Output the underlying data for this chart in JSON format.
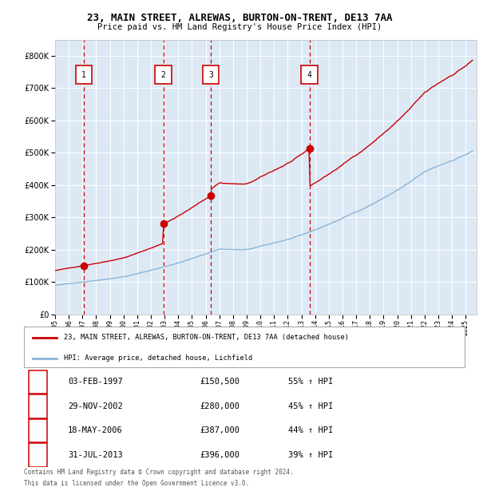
{
  "title": "23, MAIN STREET, ALREWAS, BURTON-ON-TRENT, DE13 7AA",
  "subtitle": "Price paid vs. HM Land Registry's House Price Index (HPI)",
  "legend_line1": "23, MAIN STREET, ALREWAS, BURTON-ON-TRENT, DE13 7AA (detached house)",
  "legend_line2": "HPI: Average price, detached house, Lichfield",
  "footer1": "Contains HM Land Registry data © Crown copyright and database right 2024.",
  "footer2": "This data is licensed under the Open Government Licence v3.0.",
  "transactions": [
    {
      "num": 1,
      "date": "03-FEB-1997",
      "price": 150500,
      "pct": "55% ↑ HPI",
      "x": 1997.09
    },
    {
      "num": 2,
      "date": "29-NOV-2002",
      "price": 280000,
      "pct": "45% ↑ HPI",
      "x": 2002.91
    },
    {
      "num": 3,
      "date": "18-MAY-2006",
      "price": 387000,
      "pct": "44% ↑ HPI",
      "x": 2006.38
    },
    {
      "num": 4,
      "date": "31-JUL-2013",
      "price": 396000,
      "pct": "39% ↑ HPI",
      "x": 2013.58
    }
  ],
  "hpi_color": "#8ab4d8",
  "price_color": "#cc0000",
  "vline_color": "#cc0000",
  "plot_bg": "#dce9f5",
  "grid_color": "#ffffff",
  "ylim": [
    0,
    850000
  ],
  "xlim_start": 1995.0,
  "xlim_end": 2025.8
}
